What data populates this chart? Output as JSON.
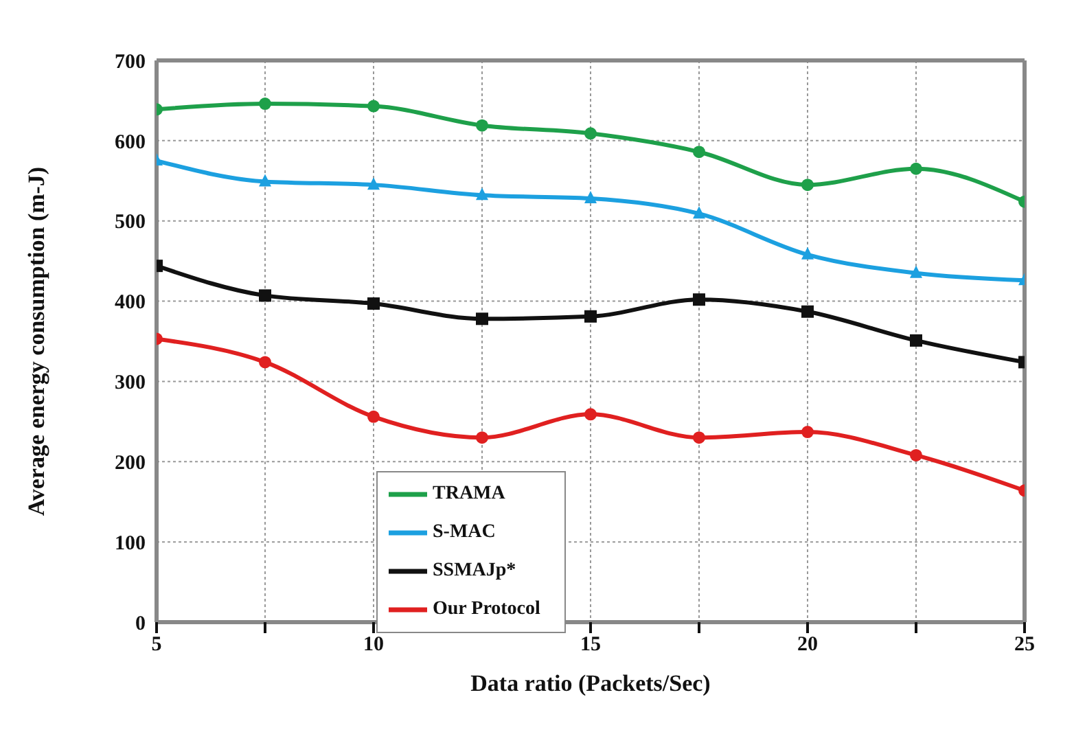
{
  "chart_data": {
    "type": "line",
    "xlabel": "Data ratio (Packets/Sec)",
    "ylabel": "Average energy consumption (m-J)",
    "x": [
      5,
      7.5,
      10,
      12.5,
      15,
      17.5,
      20,
      22.5,
      25
    ],
    "series": [
      {
        "name": "TRAMA",
        "color": "#1ea04a",
        "marker": "circle",
        "values": [
          639,
          646,
          643,
          619,
          609,
          586,
          545,
          565,
          524
        ]
      },
      {
        "name": "S-MAC",
        "color": "#1ca0e0",
        "marker": "triangle",
        "values": [
          575,
          549,
          545,
          532,
          528,
          509,
          458,
          435,
          426
        ]
      },
      {
        "name": "SSMAJp*",
        "color": "#111111",
        "marker": "square",
        "values": [
          444,
          407,
          397,
          378,
          381,
          402,
          387,
          351,
          324
        ]
      },
      {
        "name": "Our Protocol",
        "color": "#e02020",
        "marker": "circle",
        "values": [
          353,
          324,
          256,
          230,
          259,
          230,
          237,
          208,
          164
        ]
      }
    ],
    "xlim": [
      5,
      25
    ],
    "xticks": [
      5,
      {
        "value": 7.5,
        "label": null
      },
      10,
      {
        "value": 12.5,
        "label": null
      },
      15,
      {
        "value": 17.5,
        "label": null
      },
      20,
      {
        "value": 22.5,
        "label": null
      },
      25
    ],
    "ylim": [
      0,
      700
    ],
    "yticks": [
      0,
      100,
      200,
      300,
      400,
      500,
      600,
      700
    ],
    "grid": true,
    "legend": "bottom left",
    "line_style": "solid"
  }
}
